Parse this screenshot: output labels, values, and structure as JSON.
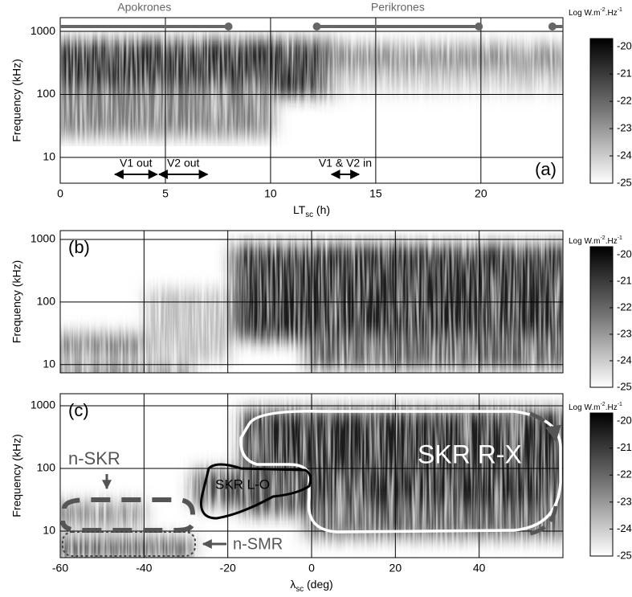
{
  "chart_data": [
    {
      "type": "spectrogram",
      "panel_label": "(a)",
      "xlabel": [
        "LT",
        "sc",
        " (h)"
      ],
      "ylabel": "Frequency (kHz)",
      "xlim": [
        0,
        23.9
      ],
      "xticks": [
        0,
        5,
        10,
        15,
        20
      ],
      "show_xtick_labels": true,
      "ylim": [
        3.9,
        1650
      ],
      "yticks": [
        10,
        100,
        1000
      ],
      "log_y": true,
      "grid": true,
      "colorbar": {
        "label": [
          "Log W.m",
          "-2",
          ".Hz",
          "-1"
        ],
        "lim": [
          -25,
          -19.7
        ],
        "ticks": [
          -20,
          -21,
          -22,
          -23,
          -24,
          -25
        ]
      },
      "intervals": [
        {
          "label": "Apokrones",
          "start": 0,
          "end": 8.0,
          "color": "#666666"
        },
        {
          "label": "Perikrones",
          "start": 12.2,
          "end": 19.9,
          "color": "#666666"
        },
        {
          "start": 23.4,
          "end": 24,
          "color": "#666666"
        }
      ],
      "arrows": [
        {
          "label": "V1 out",
          "start": 2.6,
          "end": 4.6
        },
        {
          "label": "V2 out",
          "start": 4.7,
          "end": 7.0
        },
        {
          "label": "V1 & V2 in",
          "start": 12.9,
          "end": 14.2
        }
      ]
    },
    {
      "type": "spectrogram",
      "panel_label": "(b)",
      "ylabel": "Frequency (kHz)",
      "xlim": [
        -60,
        60
      ],
      "xticks": [
        -60,
        -40,
        -20,
        0,
        20,
        40
      ],
      "show_xtick_labels": false,
      "ylim": [
        7.4,
        1384
      ],
      "yticks": [
        10,
        100,
        1000
      ],
      "log_y": true,
      "grid": true,
      "colorbar": {
        "label": [
          "Log W.m",
          "-2",
          ".Hz",
          "-1"
        ],
        "lim": [
          -25,
          -19.7
        ],
        "ticks": [
          -20,
          -21,
          -22,
          -23,
          -24,
          -25
        ]
      }
    },
    {
      "type": "spectrogram",
      "panel_label": "(c)",
      "xlabel": [
        "λ",
        "sc",
        " (deg)"
      ],
      "ylabel": "Frequency (kHz)",
      "xlim": [
        -60,
        60
      ],
      "xticks": [
        -60,
        -40,
        -20,
        0,
        20,
        40
      ],
      "show_xtick_labels": true,
      "ylim": [
        3.77,
        1556
      ],
      "yticks": [
        10,
        100,
        1000
      ],
      "log_y": true,
      "grid": true,
      "colorbar": {
        "label": [
          "Log W.m",
          "-2",
          ".Hz",
          "-1"
        ],
        "lim": [
          -25,
          -19.7
        ],
        "ticks": [
          -20,
          -21,
          -22,
          -23,
          -24,
          -25
        ]
      },
      "annotations": [
        "n-SKR",
        "n-SMR",
        "SKR L-O",
        "SKR R-X"
      ]
    }
  ]
}
